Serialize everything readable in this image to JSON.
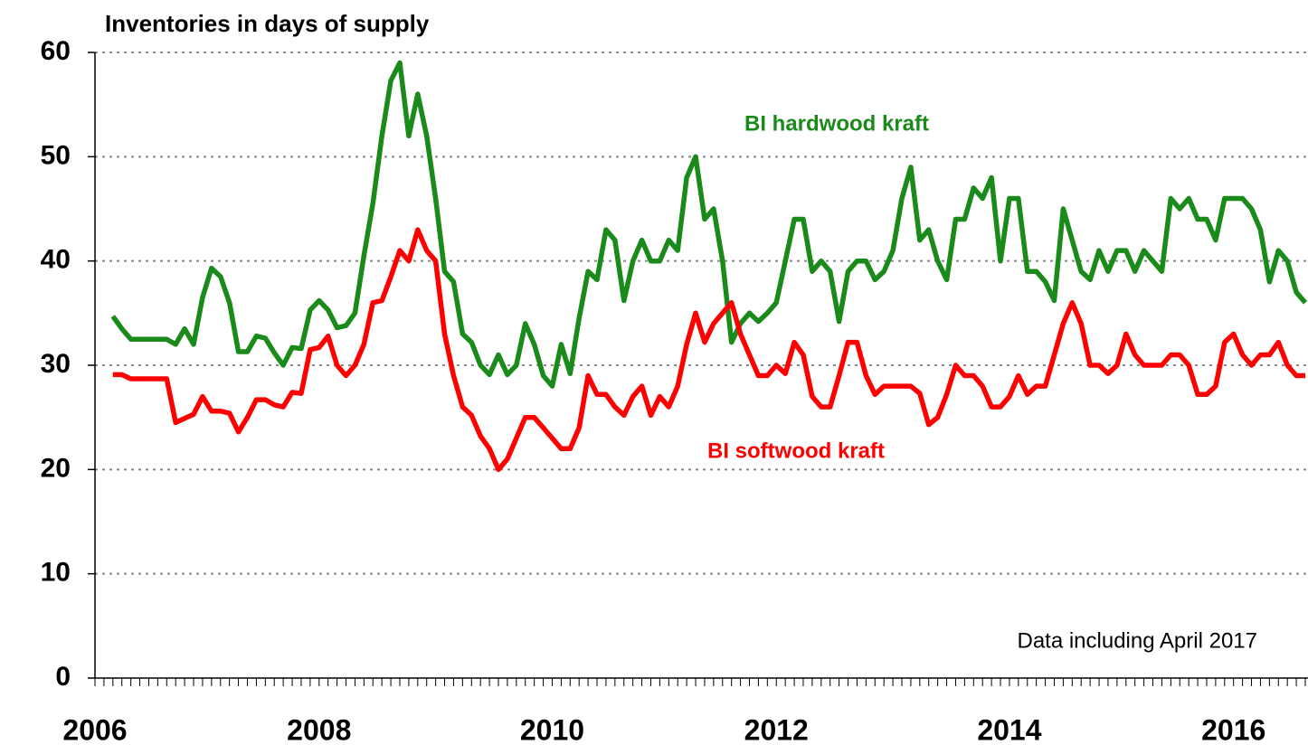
{
  "chart_data": {
    "type": "line",
    "title": "Inventories in days of supply",
    "note": "Data including April 2017",
    "categories": [
      "2006",
      null,
      null,
      null,
      null,
      null,
      null,
      null,
      null,
      null,
      null,
      null,
      null,
      null,
      null,
      null,
      null,
      null,
      null,
      null,
      null,
      null,
      null,
      null,
      null,
      "2008",
      null,
      null,
      null,
      null,
      null,
      null,
      null,
      null,
      null,
      null,
      null,
      null,
      null,
      null,
      null,
      null,
      null,
      null,
      null,
      null,
      null,
      null,
      null,
      null,
      null,
      "2010",
      null,
      null,
      null,
      null,
      null,
      null,
      null,
      null,
      null,
      null,
      null,
      null,
      null,
      null,
      null,
      null,
      null,
      null,
      null,
      null,
      null,
      null,
      null,
      null,
      "2012",
      null,
      null,
      null,
      null,
      null,
      null,
      null,
      null,
      null,
      null,
      null,
      null,
      null,
      null,
      null,
      null,
      null,
      null,
      null,
      null,
      null,
      null,
      null,
      null,
      null,
      "2014",
      null,
      null,
      null,
      null,
      null,
      null,
      null,
      null,
      null,
      null,
      null,
      null,
      null,
      null,
      null,
      null,
      null,
      null,
      null,
      null,
      null,
      null,
      null,
      null,
      "2016",
      null,
      null,
      null,
      null,
      null,
      null,
      null,
      null
    ],
    "series": [
      {
        "name": "BI hardwood kraft",
        "color": "#1a8a1a",
        "values": [
          null,
          null,
          34.7,
          33.5,
          32.5,
          32.5,
          32.5,
          32.5,
          32.5,
          32,
          33.5,
          32,
          36.5,
          39.3,
          38.5,
          36,
          31.3,
          31.3,
          32.8,
          32.6,
          31.2,
          30,
          31.7,
          31.6,
          35.3,
          36.2,
          35.3,
          33.6,
          33.8,
          35,
          40.5,
          45.5,
          52,
          57.3,
          59,
          52,
          56,
          52,
          46,
          39,
          38,
          33,
          32.2,
          30,
          29.1,
          31,
          29.1,
          30,
          34,
          32,
          29,
          28,
          32,
          29.2,
          34.5,
          39,
          38.2,
          43,
          42,
          36.2,
          40,
          42,
          40,
          40,
          42,
          41,
          48,
          50,
          44,
          45,
          40,
          32.2,
          34,
          35,
          34.2,
          35,
          36,
          40,
          44,
          44,
          39,
          40,
          39,
          34.2,
          39,
          40,
          40,
          38.2,
          39,
          41,
          46,
          49,
          42,
          43,
          40,
          38.2,
          44,
          44,
          47,
          46,
          48,
          40,
          46,
          46,
          39,
          39,
          38,
          36.2,
          45,
          42,
          39,
          38.2,
          41,
          39,
          41,
          41,
          39,
          41,
          40,
          39,
          46,
          45,
          46,
          44,
          44,
          42,
          46,
          46,
          46,
          45,
          43,
          38,
          41,
          40,
          37,
          36
        ]
      },
      {
        "name": "BI softwood kraft",
        "color": "#ff0000",
        "values": [
          null,
          null,
          29.1,
          29.1,
          28.7,
          28.7,
          28.7,
          28.7,
          28.7,
          24.5,
          24.9,
          25.3,
          27,
          25.6,
          25.6,
          25.4,
          23.6,
          25,
          26.7,
          26.7,
          26.2,
          26,
          27.4,
          27.3,
          31.5,
          31.7,
          32.8,
          30,
          29,
          30,
          32,
          36,
          36.2,
          38.5,
          41,
          40,
          43,
          41,
          40,
          33,
          29,
          26,
          25.2,
          23.2,
          22,
          20,
          21,
          23,
          25,
          25,
          24,
          23,
          22,
          22,
          24,
          29,
          27.2,
          27.2,
          26,
          25.2,
          27,
          28,
          25.2,
          27,
          26,
          28,
          32,
          35,
          32.2,
          34,
          35,
          36,
          33,
          31,
          29,
          29,
          30,
          29.2,
          32.2,
          31,
          27,
          26,
          26,
          29,
          32.2,
          32.2,
          29,
          27.2,
          28,
          28,
          28,
          28,
          27.3,
          24.3,
          25,
          27.2,
          30,
          29,
          29,
          28,
          26,
          26,
          27,
          29,
          27.2,
          28,
          28,
          31,
          34,
          36,
          34,
          30,
          30,
          29.2,
          30,
          33,
          31,
          30,
          30,
          30,
          31,
          31,
          30,
          27.2,
          27.2,
          28,
          32.2,
          33,
          31,
          30,
          31,
          31,
          32.2,
          30,
          29,
          29
        ]
      }
    ],
    "ylim": [
      0,
      60
    ],
    "yticks": [
      0,
      10,
      20,
      30,
      40,
      50,
      60
    ],
    "grid": true
  }
}
